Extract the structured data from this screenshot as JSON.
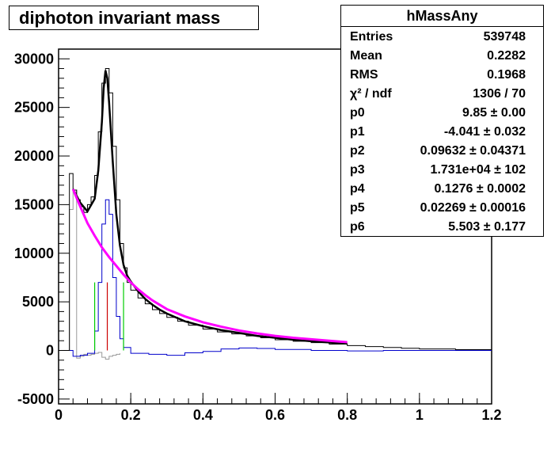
{
  "title": "diphoton invariant mass",
  "stats": {
    "name": "hMassAny",
    "rows": [
      {
        "label": "Entries",
        "value": "539748"
      },
      {
        "label": "Mean",
        "value": "0.2282"
      },
      {
        "label": "RMS",
        "value": "0.1968"
      },
      {
        "label": "χ² / ndf",
        "value": "1306 / 70"
      },
      {
        "label": "p0",
        "value": "9.85 ± 0.00"
      },
      {
        "label": "p1",
        "value": "-4.041 ± 0.032"
      },
      {
        "label": "p2",
        "value": "0.09632 ± 0.04371"
      },
      {
        "label": "p3",
        "value": "1.731e+04 ± 102"
      },
      {
        "label": "p4",
        "value": "0.1276 ± 0.0002"
      },
      {
        "label": "p5",
        "value": "0.02269 ± 0.00016"
      },
      {
        "label": "p6",
        "value": "5.503 ± 0.177"
      }
    ]
  },
  "chart_data": {
    "type": "line",
    "title": "diphoton invariant mass",
    "xlabel": "",
    "ylabel": "",
    "xlim": [
      0,
      1.2
    ],
    "ylim": [
      -5500,
      31000
    ],
    "x_ticks": [
      "0",
      "0.2",
      "0.4",
      "0.6",
      "0.8",
      "1",
      "1.2"
    ],
    "y_ticks": [
      "-5000",
      "0",
      "5000",
      "10000",
      "15000",
      "20000",
      "25000",
      "30000"
    ],
    "grid": false,
    "legend": "none",
    "colors": {
      "data": "#000000",
      "total_fit": "#000000",
      "background_fit": "#ff00ff",
      "signal": "#0000cc",
      "side_low": "#00cc00",
      "peak": "#cc0000",
      "sub": "#999999"
    },
    "series": [
      {
        "style": "hist",
        "values_x": [
          0.02,
          0.03,
          0.04,
          0.05,
          0.06,
          0.07,
          0.08,
          0.09,
          0.1,
          0.11,
          0.12,
          0.13,
          0.14,
          0.15,
          0.16,
          0.17,
          0.18,
          0.19,
          0.2,
          0.22,
          0.24,
          0.26,
          0.28,
          0.3,
          0.33,
          0.36,
          0.4,
          0.44,
          0.48,
          0.52,
          0.56,
          0.6,
          0.65,
          0.7,
          0.75,
          0.8,
          0.85,
          0.9,
          0.95,
          1.0,
          1.1,
          1.2
        ],
        "values_y": [
          0,
          18200,
          16500,
          15500,
          14800,
          14200,
          15000,
          15800,
          18000,
          22500,
          27500,
          29000,
          26500,
          21000,
          15500,
          11000,
          8500,
          7000,
          6200,
          5400,
          4800,
          4200,
          3800,
          3400,
          3000,
          2600,
          2200,
          1900,
          1700,
          1500,
          1300,
          1100,
          950,
          800,
          650,
          500,
          400,
          300,
          220,
          150,
          80,
          40
        ]
      },
      {
        "style": "fit",
        "x": [
          0.04,
          0.06,
          0.08,
          0.1,
          0.11,
          0.12,
          0.125,
          0.13,
          0.135,
          0.14,
          0.15,
          0.16,
          0.17,
          0.18,
          0.19,
          0.2,
          0.22,
          0.24,
          0.26,
          0.28,
          0.3,
          0.35,
          0.4,
          0.45,
          0.5,
          0.55,
          0.6,
          0.65,
          0.7,
          0.75,
          0.8
        ],
        "y": [
          16600,
          15200,
          14300,
          15600,
          18500,
          23500,
          27000,
          28800,
          28000,
          25500,
          19500,
          14000,
          10800,
          8800,
          7700,
          7100,
          6100,
          5300,
          4700,
          4200,
          3800,
          3000,
          2500,
          2100,
          1800,
          1500,
          1300,
          1100,
          950,
          820,
          700
        ]
      },
      {
        "style": "background",
        "x": [
          0.04,
          0.06,
          0.08,
          0.1,
          0.12,
          0.14,
          0.16,
          0.18,
          0.2,
          0.22,
          0.24,
          0.26,
          0.28,
          0.3,
          0.35,
          0.4,
          0.45,
          0.5,
          0.55,
          0.6,
          0.65,
          0.7,
          0.75,
          0.8
        ],
        "y": [
          16600,
          14800,
          13100,
          11800,
          10600,
          9600,
          8700,
          7800,
          7000,
          6300,
          5700,
          5150,
          4700,
          4250,
          3500,
          2900,
          2450,
          2050,
          1750,
          1500,
          1300,
          1150,
          1000,
          850
        ]
      },
      {
        "style": "residual-hist",
        "x": [
          0.02,
          0.04,
          0.06,
          0.08,
          0.1,
          0.11,
          0.12,
          0.13,
          0.14,
          0.15,
          0.16,
          0.17,
          0.18,
          0.2,
          0.25,
          0.3,
          0.35,
          0.4,
          0.45,
          0.5,
          0.55,
          0.6,
          0.7,
          0.8,
          0.9,
          1.0,
          1.2
        ],
        "y": [
          0,
          -600,
          -500,
          -300,
          2000,
          7000,
          13000,
          15500,
          14000,
          7500,
          3500,
          1200,
          300,
          -300,
          -400,
          -500,
          -250,
          -100,
          150,
          250,
          200,
          100,
          0,
          -50,
          0,
          0,
          0
        ]
      },
      {
        "style": "subtracted",
        "x": [
          0.02,
          0.03,
          0.04,
          0.05,
          0.06,
          0.07,
          0.08,
          0.09,
          0.1,
          0.11,
          0.12,
          0.13,
          0.14,
          0.15,
          0.16,
          0.17
        ],
        "y": [
          0,
          14500,
          16500,
          -800,
          -600,
          -400,
          -500,
          -400,
          -300,
          -200,
          -700,
          -900,
          -600,
          -500,
          -400,
          -300
        ]
      }
    ],
    "markers": [
      {
        "x": 0.1,
        "y0": 0,
        "y1": 7000,
        "color": "green"
      },
      {
        "x": 0.135,
        "y0": 0,
        "y1": 7000,
        "color": "red"
      },
      {
        "x": 0.18,
        "y0": 0,
        "y1": 7000,
        "color": "green"
      }
    ]
  }
}
